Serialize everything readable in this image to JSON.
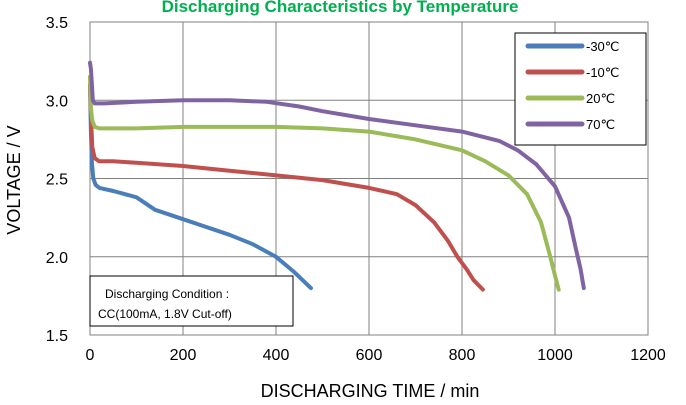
{
  "chart_data": {
    "type": "line",
    "title": "Discharging Characteristics by Temperature",
    "xlabel": "DISCHARGING TIME / min",
    "ylabel": "VOLTAGE / V",
    "xlim": [
      0,
      1200
    ],
    "ylim": [
      1.5,
      3.5
    ],
    "xticks": [
      "0",
      "200",
      "400",
      "600",
      "800",
      "1000",
      "1200"
    ],
    "yticks": [
      "1.5",
      "2.0",
      "2.5",
      "3.0",
      "3.5"
    ],
    "grid": true,
    "legend_position": "top-right",
    "annotation": [
      "Discharging Condition :",
      "CC(100mA, 1.8V Cut-off)"
    ],
    "series": [
      {
        "name": "-30℃",
        "color": "#4a7ebb",
        "points": [
          [
            0,
            3.1
          ],
          [
            2,
            2.8
          ],
          [
            4,
            2.6
          ],
          [
            7,
            2.5
          ],
          [
            12,
            2.46
          ],
          [
            20,
            2.44
          ],
          [
            50,
            2.42
          ],
          [
            100,
            2.38
          ],
          [
            140,
            2.3
          ],
          [
            200,
            2.24
          ],
          [
            250,
            2.19
          ],
          [
            300,
            2.14
          ],
          [
            350,
            2.08
          ],
          [
            400,
            2.0
          ],
          [
            440,
            1.9
          ],
          [
            475,
            1.8
          ]
        ]
      },
      {
        "name": "-10℃",
        "color": "#c0504d",
        "points": [
          [
            0,
            3.1
          ],
          [
            2,
            2.9
          ],
          [
            5,
            2.7
          ],
          [
            10,
            2.63
          ],
          [
            20,
            2.61
          ],
          [
            50,
            2.61
          ],
          [
            100,
            2.6
          ],
          [
            200,
            2.58
          ],
          [
            300,
            2.55
          ],
          [
            400,
            2.52
          ],
          [
            500,
            2.49
          ],
          [
            600,
            2.44
          ],
          [
            660,
            2.4
          ],
          [
            700,
            2.33
          ],
          [
            740,
            2.22
          ],
          [
            770,
            2.1
          ],
          [
            790,
            2.0
          ],
          [
            810,
            1.92
          ],
          [
            825,
            1.85
          ],
          [
            845,
            1.79
          ]
        ]
      },
      {
        "name": "20℃",
        "color": "#9bbb59",
        "points": [
          [
            0,
            3.15
          ],
          [
            2,
            2.95
          ],
          [
            5,
            2.87
          ],
          [
            10,
            2.83
          ],
          [
            20,
            2.82
          ],
          [
            50,
            2.82
          ],
          [
            100,
            2.82
          ],
          [
            200,
            2.83
          ],
          [
            300,
            2.83
          ],
          [
            400,
            2.83
          ],
          [
            500,
            2.82
          ],
          [
            600,
            2.8
          ],
          [
            700,
            2.75
          ],
          [
            800,
            2.68
          ],
          [
            850,
            2.61
          ],
          [
            900,
            2.52
          ],
          [
            940,
            2.4
          ],
          [
            970,
            2.22
          ],
          [
            990,
            2.0
          ],
          [
            1000,
            1.88
          ],
          [
            1008,
            1.79
          ]
        ]
      },
      {
        "name": "70℃",
        "color": "#8064a2",
        "points": [
          [
            0,
            3.24
          ],
          [
            2,
            3.2
          ],
          [
            4,
            3.1
          ],
          [
            6,
            3.0
          ],
          [
            10,
            2.98
          ],
          [
            30,
            2.98
          ],
          [
            100,
            2.99
          ],
          [
            200,
            3.0
          ],
          [
            300,
            3.0
          ],
          [
            380,
            2.99
          ],
          [
            450,
            2.96
          ],
          [
            500,
            2.93
          ],
          [
            600,
            2.88
          ],
          [
            700,
            2.84
          ],
          [
            800,
            2.8
          ],
          [
            880,
            2.74
          ],
          [
            920,
            2.68
          ],
          [
            960,
            2.59
          ],
          [
            1000,
            2.45
          ],
          [
            1030,
            2.25
          ],
          [
            1045,
            2.05
          ],
          [
            1055,
            1.92
          ],
          [
            1062,
            1.8
          ]
        ]
      }
    ]
  }
}
